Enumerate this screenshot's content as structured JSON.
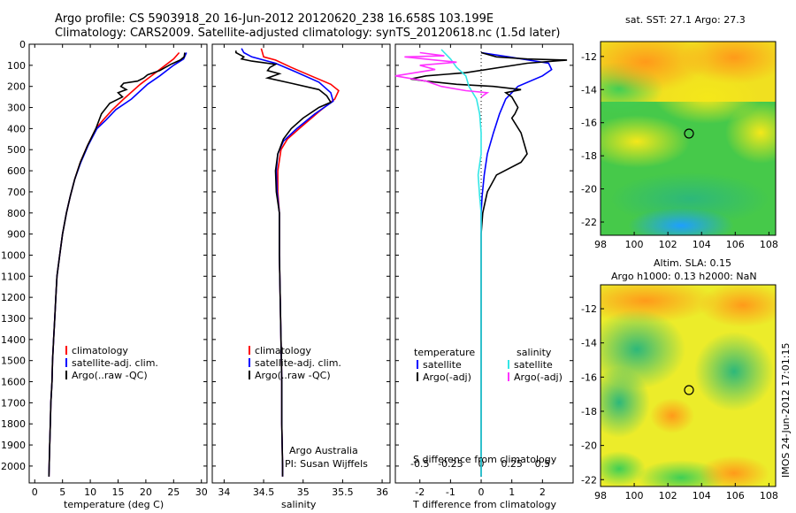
{
  "header": {
    "line1": "Argo profile: CS 5903918_20 16-Jun-2012 20120620_238 16.658S 103.199E",
    "line2": "Climatology: CARS2009. Satellite-adjusted climatology: synTS_20120618.nc (1.5d later)"
  },
  "colors": {
    "climatology": "#ff0000",
    "satellite": "#0000ff",
    "argo": "#000000",
    "salinity_sat": "#33e6e6",
    "salinity_argo": "#ff33ff"
  },
  "chart_data": [
    {
      "type": "line",
      "id": "temperature",
      "xlabel": "temperature (deg C)",
      "xlim": [
        -1,
        31
      ],
      "ylim": [
        2080,
        0
      ],
      "xticks": [
        0,
        5,
        10,
        15,
        20,
        25,
        30
      ],
      "yticks": [
        0,
        100,
        200,
        300,
        400,
        500,
        600,
        700,
        800,
        900,
        1000,
        1100,
        1200,
        1300,
        1400,
        1500,
        1600,
        1700,
        1800,
        1900,
        2000
      ],
      "legend": [
        "climatology",
        "satellite-adj. clim.",
        "Argo(..raw -QC)"
      ],
      "series": [
        {
          "name": "climatology",
          "color": "red",
          "points": [
            [
              26,
              40
            ],
            [
              25,
              70
            ],
            [
              23.5,
              100
            ],
            [
              21,
              150
            ],
            [
              19,
              190
            ],
            [
              16,
              260
            ],
            [
              14,
              310
            ],
            [
              12.3,
              360
            ],
            [
              11,
              400
            ],
            [
              9.5,
              480
            ],
            [
              8.2,
              560
            ],
            [
              7.2,
              640
            ],
            [
              6.4,
              720
            ],
            [
              5.7,
              800
            ],
            [
              5,
              900
            ],
            [
              4.5,
              1000
            ],
            [
              4,
              1100
            ],
            [
              3.8,
              1200
            ],
            [
              3.6,
              1300
            ],
            [
              3.4,
              1400
            ],
            [
              3.2,
              1500
            ],
            [
              3.1,
              1600
            ],
            [
              2.9,
              1700
            ],
            [
              2.8,
              1800
            ],
            [
              2.7,
              1900
            ],
            [
              2.6,
              2000
            ],
            [
              2.55,
              2050
            ]
          ]
        },
        {
          "name": "satellite-adj. clim.",
          "color": "blue",
          "points": [
            [
              27.3,
              40
            ],
            [
              26.8,
              70
            ],
            [
              25,
              100
            ],
            [
              22.5,
              150
            ],
            [
              20.3,
              190
            ],
            [
              17.4,
              260
            ],
            [
              14.6,
              310
            ],
            [
              12.8,
              360
            ],
            [
              11.2,
              400
            ],
            [
              9.6,
              480
            ],
            [
              8.3,
              560
            ],
            [
              7.2,
              640
            ],
            [
              6.4,
              720
            ],
            [
              5.7,
              800
            ],
            [
              5,
              900
            ],
            [
              4.5,
              1000
            ],
            [
              4,
              1100
            ],
            [
              3.8,
              1200
            ],
            [
              3.6,
              1300
            ],
            [
              3.4,
              1400
            ],
            [
              3.2,
              1500
            ],
            [
              3.1,
              1600
            ],
            [
              2.9,
              1700
            ],
            [
              2.8,
              1800
            ],
            [
              2.7,
              1900
            ],
            [
              2.6,
              2000
            ],
            [
              2.55,
              2050
            ]
          ]
        },
        {
          "name": "Argo(..raw -QC)",
          "color": "black",
          "points": [
            [
              27,
              40
            ],
            [
              26.9,
              60
            ],
            [
              26.2,
              75
            ],
            [
              24.5,
              95
            ],
            [
              22.5,
              125
            ],
            [
              20.3,
              145
            ],
            [
              19.6,
              160
            ],
            [
              18.5,
              175
            ],
            [
              16,
              185
            ],
            [
              15.5,
              200
            ],
            [
              16.5,
              215
            ],
            [
              15,
              230
            ],
            [
              15.8,
              250
            ],
            [
              13.5,
              280
            ],
            [
              12,
              330
            ],
            [
              11,
              400
            ],
            [
              9.5,
              480
            ],
            [
              8.2,
              560
            ],
            [
              7.2,
              640
            ],
            [
              6.4,
              720
            ],
            [
              5.7,
              800
            ],
            [
              5,
              900
            ],
            [
              4.5,
              1000
            ],
            [
              4,
              1100
            ],
            [
              3.8,
              1200
            ],
            [
              3.6,
              1300
            ],
            [
              3.4,
              1400
            ],
            [
              3.2,
              1500
            ],
            [
              3.1,
              1600
            ],
            [
              2.9,
              1700
            ],
            [
              2.8,
              1800
            ],
            [
              2.7,
              1900
            ],
            [
              2.6,
              2000
            ],
            [
              2.55,
              2050
            ]
          ]
        }
      ]
    },
    {
      "type": "line",
      "id": "salinity",
      "xlabel": "salinity",
      "xlim": [
        33.85,
        36.1
      ],
      "ylim": [
        2080,
        0
      ],
      "xticks": [
        34,
        34.5,
        35,
        35.5,
        36
      ],
      "legend": [
        "climatology",
        "satellite-adj. clim.",
        "Argo(..raw -QC)"
      ],
      "annotation": [
        "Argo Australia",
        "PI: Susan Wijffels"
      ],
      "series": [
        {
          "name": "climatology",
          "color": "red",
          "points": [
            [
              34.47,
              20
            ],
            [
              34.5,
              60
            ],
            [
              34.65,
              75
            ],
            [
              34.85,
              110
            ],
            [
              35.1,
              150
            ],
            [
              35.35,
              190
            ],
            [
              35.45,
              220
            ],
            [
              35.4,
              260
            ],
            [
              35.2,
              320
            ],
            [
              34.95,
              400
            ],
            [
              34.8,
              450
            ],
            [
              34.72,
              500
            ],
            [
              34.68,
              600
            ],
            [
              34.68,
              700
            ],
            [
              34.7,
              800
            ],
            [
              34.7,
              1000
            ],
            [
              34.71,
              1200
            ],
            [
              34.72,
              1400
            ],
            [
              34.73,
              1600
            ],
            [
              34.73,
              1800
            ],
            [
              34.74,
              2000
            ],
            [
              34.74,
              2050
            ]
          ]
        },
        {
          "name": "satellite-adj. clim.",
          "color": "blue",
          "points": [
            [
              34.22,
              20
            ],
            [
              34.25,
              40
            ],
            [
              34.35,
              60
            ],
            [
              34.65,
              90
            ],
            [
              34.9,
              130
            ],
            [
              35.2,
              180
            ],
            [
              35.35,
              230
            ],
            [
              35.38,
              270
            ],
            [
              35.15,
              330
            ],
            [
              34.92,
              400
            ],
            [
              34.75,
              460
            ],
            [
              34.68,
              520
            ],
            [
              34.66,
              600
            ],
            [
              34.67,
              700
            ],
            [
              34.7,
              800
            ],
            [
              34.7,
              1000
            ],
            [
              34.71,
              1200
            ],
            [
              34.72,
              1400
            ],
            [
              34.73,
              1600
            ],
            [
              34.73,
              1800
            ],
            [
              34.74,
              2000
            ],
            [
              34.74,
              2050
            ]
          ]
        },
        {
          "name": "Argo(..raw -QC)",
          "color": "black",
          "points": [
            [
              34.15,
              30
            ],
            [
              34.15,
              40
            ],
            [
              34.2,
              50
            ],
            [
              34.25,
              60
            ],
            [
              34.22,
              70
            ],
            [
              34.35,
              80
            ],
            [
              34.65,
              95
            ],
            [
              34.58,
              110
            ],
            [
              34.55,
              125
            ],
            [
              34.7,
              140
            ],
            [
              34.55,
              160
            ],
            [
              34.85,
              185
            ],
            [
              35.2,
              215
            ],
            [
              35.3,
              245
            ],
            [
              35.35,
              275
            ],
            [
              35.2,
              300
            ],
            [
              35,
              350
            ],
            [
              34.85,
              400
            ],
            [
              34.75,
              450
            ],
            [
              34.68,
              520
            ],
            [
              34.65,
              600
            ],
            [
              34.66,
              700
            ],
            [
              34.7,
              800
            ],
            [
              34.7,
              1000
            ],
            [
              34.71,
              1200
            ],
            [
              34.72,
              1400
            ],
            [
              34.73,
              1600
            ],
            [
              34.73,
              1800
            ],
            [
              34.74,
              2000
            ],
            [
              34.74,
              2050
            ]
          ]
        }
      ]
    },
    {
      "type": "line",
      "id": "difference",
      "xlabel": "T difference from climatology",
      "xlabel_top": "S difference from climatology",
      "xlim": [
        -2.8,
        3.0
      ],
      "ylim": [
        2080,
        0
      ],
      "xticks_t": [
        -2,
        -1,
        0,
        1,
        2
      ],
      "xticks_s": [
        "-0.5",
        "-0.25",
        "0",
        "0.25",
        "0.5"
      ],
      "legend_t_title": "temperature",
      "legend_s_title": "salinity",
      "legend_t": [
        "satellite",
        "Argo(-adj)"
      ],
      "legend_s": [
        "satellite",
        "Argo(-adj)"
      ],
      "series": [
        {
          "name": "T satellite",
          "color": "blue",
          "points": [
            [
              0,
              40
            ],
            [
              0.9,
              60
            ],
            [
              2.2,
              90
            ],
            [
              2.3,
              120
            ],
            [
              2,
              150
            ],
            [
              1.2,
              200
            ],
            [
              0.8,
              260
            ],
            [
              0.6,
              330
            ],
            [
              0.4,
              420
            ],
            [
              0.2,
              520
            ],
            [
              0.1,
              620
            ],
            [
              0.03,
              720
            ],
            [
              0,
              800
            ],
            [
              0,
              1000
            ],
            [
              0,
              2050
            ]
          ]
        },
        {
          "name": "T Argo",
          "color": "black",
          "points": [
            [
              0,
              40
            ],
            [
              0.5,
              60
            ],
            [
              1.5,
              70
            ],
            [
              2.8,
              75
            ],
            [
              1.5,
              90
            ],
            [
              -0.5,
              135
            ],
            [
              -1.8,
              150
            ],
            [
              -2.3,
              165
            ],
            [
              -1.8,
              175
            ],
            [
              -0.8,
              190
            ],
            [
              0.4,
              200
            ],
            [
              1.3,
              215
            ],
            [
              0.8,
              230
            ],
            [
              1,
              250
            ],
            [
              1.2,
              300
            ],
            [
              1.1,
              330
            ],
            [
              1,
              350
            ],
            [
              1.3,
              420
            ],
            [
              1.5,
              520
            ],
            [
              1.3,
              560
            ],
            [
              0.5,
              620
            ],
            [
              0.2,
              700
            ],
            [
              0.05,
              800
            ],
            [
              0,
              900
            ],
            [
              0,
              2050
            ]
          ]
        },
        {
          "name": "S satellite",
          "color": "cyan",
          "points": [
            [
              -1.3,
              25
            ],
            [
              -1.2,
              40
            ],
            [
              -1,
              70
            ],
            [
              -0.8,
              110
            ],
            [
              -0.5,
              150
            ],
            [
              -0.4,
              200
            ],
            [
              -0.15,
              260
            ],
            [
              -0.05,
              330
            ],
            [
              0,
              420
            ],
            [
              0,
              520
            ],
            [
              -0.1,
              620
            ],
            [
              -0.05,
              720
            ],
            [
              0,
              800
            ],
            [
              0,
              2050
            ]
          ]
        },
        {
          "name": "S Argo",
          "color": "magenta",
          "points": [
            [
              -2,
              40
            ],
            [
              -1.2,
              55
            ],
            [
              -2.5,
              60
            ],
            [
              -1.5,
              75
            ],
            [
              -0.8,
              85
            ],
            [
              -2,
              100
            ],
            [
              -1.5,
              120
            ],
            [
              -2.8,
              150
            ],
            [
              -1.8,
              175
            ],
            [
              -1.3,
              200
            ],
            [
              -0.5,
              220
            ],
            [
              0.2,
              230
            ],
            [
              0,
              250
            ]
          ]
        }
      ]
    }
  ],
  "maps": {
    "sst": {
      "title": "sat. SST: 27.1  Argo: 27.3",
      "yticks": [
        -12,
        -14,
        -16,
        -18,
        -20,
        -22
      ],
      "xticks": [
        98,
        100,
        102,
        104,
        106,
        108
      ]
    },
    "sla": {
      "title1": "Altim. SLA: 0.15",
      "title2": "Argo h1000: 0.13  h2000: NaN",
      "yticks": [
        -12,
        -14,
        -16,
        -18,
        -20,
        -22
      ],
      "xticks": [
        98,
        100,
        102,
        104,
        106,
        108
      ]
    }
  },
  "side_stamp": "IMOS 24-Jun-2012 17:01:15"
}
